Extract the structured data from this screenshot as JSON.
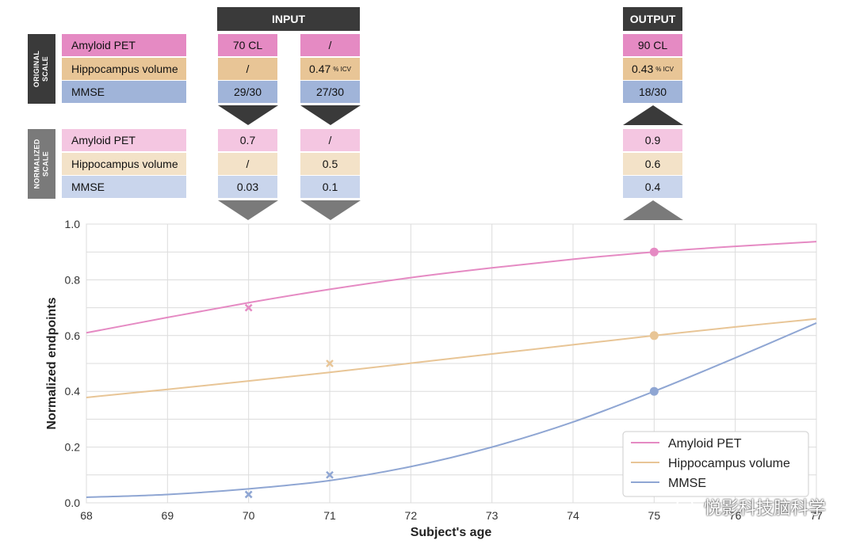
{
  "headers": {
    "input": "INPUT",
    "output": "OUTPUT"
  },
  "side_labels": {
    "original": [
      "ORIGINAL",
      "SCALE"
    ],
    "normalized": [
      "NORMALIZED",
      "SCALE"
    ]
  },
  "rows": {
    "labels": [
      "Amyloid PET",
      "Hippocampus volume",
      "MMSE"
    ],
    "original": {
      "col70": [
        "70 CL",
        "/",
        "29/30"
      ],
      "col71": [
        "/",
        "0.47",
        "27/30"
      ],
      "col75": [
        "90 CL",
        "0.43",
        "18/30"
      ],
      "icv_unit": "% ICV"
    },
    "normalized": {
      "col70": [
        "0.7",
        "/",
        "0.03"
      ],
      "col71": [
        "/",
        "0.5",
        "0.1"
      ],
      "col75": [
        "0.9",
        "0.6",
        "0.4"
      ]
    }
  },
  "colors": {
    "amyloid": "#e58ac3",
    "hippocampus": "#e8c596",
    "mmse": "#8fa6d3",
    "dark": "#3a3a3a",
    "grey": "#7a7a7a"
  },
  "watermark": "悦影科技脑科学",
  "chart_data": {
    "type": "line",
    "xlabel": "Subject's age",
    "ylabel": "Normalized endpoints",
    "xlim": [
      68,
      77
    ],
    "ylim": [
      0,
      1.0
    ],
    "xticks": [
      "68",
      "69",
      "70",
      "71",
      "72",
      "73",
      "74",
      "75",
      "76",
      "77"
    ],
    "yticks": [
      "0.0",
      "0.2",
      "0.4",
      "0.6",
      "0.8",
      "1.0"
    ],
    "grid": true,
    "legend_position": "bottom-right",
    "series": [
      {
        "name": "Amyloid PET",
        "color": "#e58ac3",
        "x": [
          68,
          69,
          70,
          71,
          72,
          73,
          74,
          75,
          76,
          77
        ],
        "y": [
          0.61,
          0.665,
          0.718,
          0.766,
          0.808,
          0.843,
          0.874,
          0.9,
          0.92,
          0.937
        ],
        "observed": [
          {
            "x": 70,
            "y": 0.7
          }
        ],
        "predicted": [
          {
            "x": 75,
            "y": 0.9
          }
        ]
      },
      {
        "name": "Hippocampus volume",
        "color": "#e8c596",
        "x": [
          68,
          69,
          70,
          71,
          72,
          73,
          74,
          75,
          76,
          77
        ],
        "y": [
          0.378,
          0.407,
          0.437,
          0.468,
          0.501,
          0.534,
          0.567,
          0.6,
          0.631,
          0.66
        ],
        "observed": [
          {
            "x": 71,
            "y": 0.5
          }
        ],
        "predicted": [
          {
            "x": 75,
            "y": 0.6
          }
        ]
      },
      {
        "name": "MMSE",
        "color": "#8fa6d3",
        "x": [
          68,
          69,
          70,
          71,
          72,
          73,
          74,
          75,
          76,
          77
        ],
        "y": [
          0.02,
          0.03,
          0.05,
          0.08,
          0.13,
          0.2,
          0.29,
          0.4,
          0.52,
          0.645
        ],
        "observed": [
          {
            "x": 70,
            "y": 0.03
          },
          {
            "x": 71,
            "y": 0.1
          }
        ],
        "predicted": [
          {
            "x": 75,
            "y": 0.4
          }
        ]
      }
    ]
  }
}
